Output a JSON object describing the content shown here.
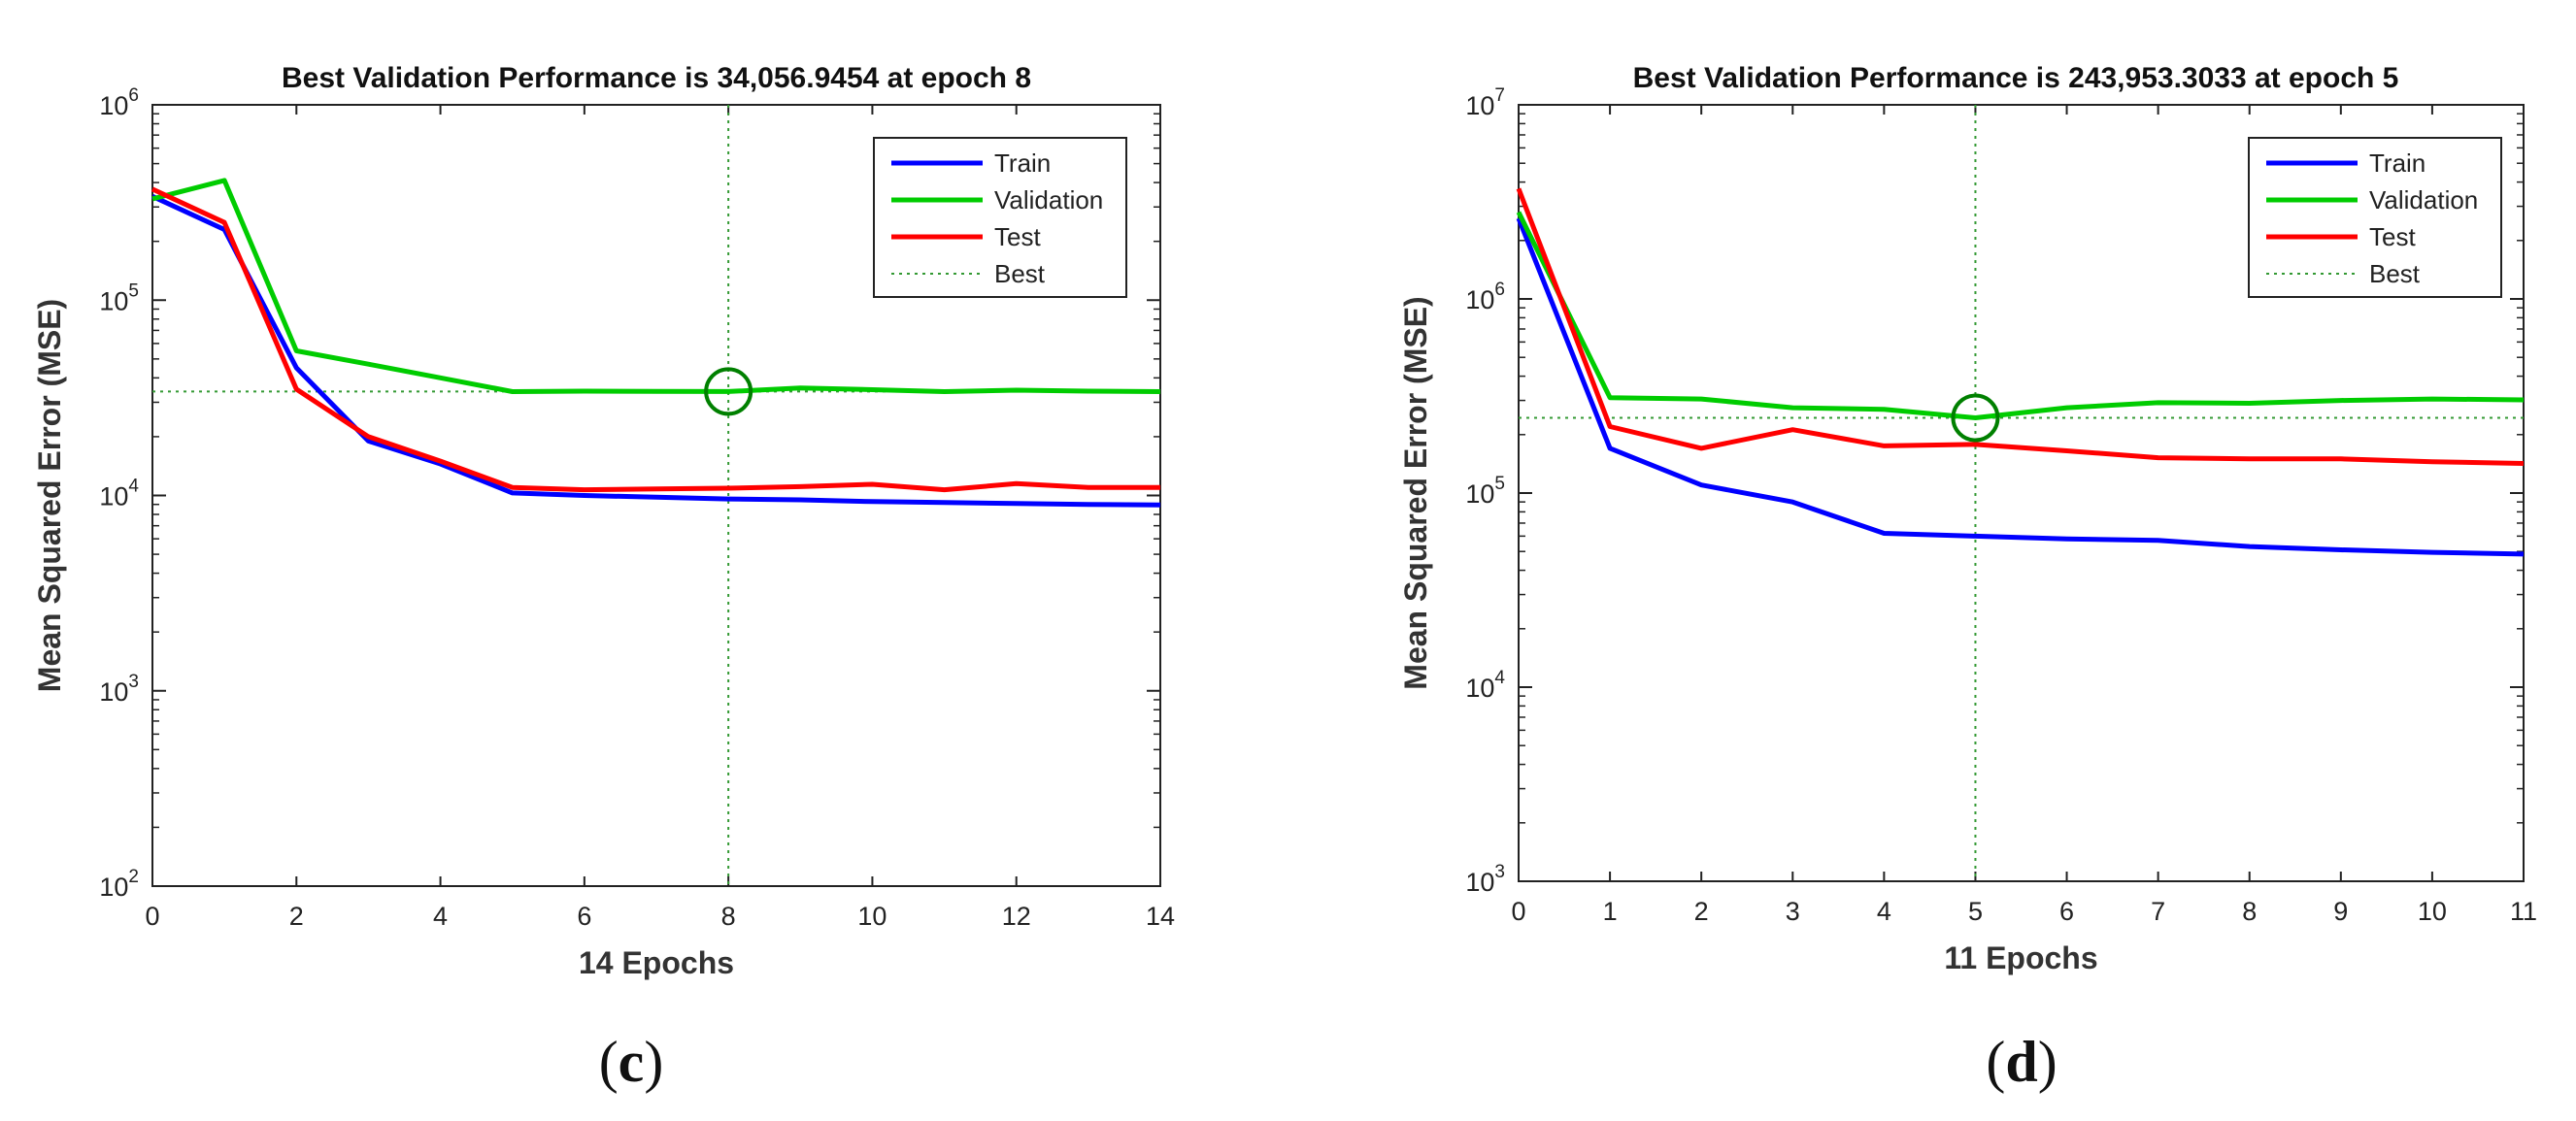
{
  "chart_data": [
    {
      "type": "line",
      "title": "Best Validation Performance is 34,056.9454 at epoch 8",
      "xlabel": "14 Epochs",
      "ylabel": "Mean Squared Error  (MSE)",
      "yscale": "log",
      "xlim": [
        0,
        14
      ],
      "ylim": [
        100,
        1000000
      ],
      "xticks": [
        0,
        2,
        4,
        6,
        8,
        10,
        12,
        14
      ],
      "yticks": [
        100,
        1000,
        10000,
        100000,
        1000000
      ],
      "ytick_exponents": [
        "2",
        "3",
        "4",
        "5",
        "6"
      ],
      "ytick_base": "10",
      "legend_position": "top-right",
      "best": {
        "epoch": 8,
        "value": 34056.9454
      },
      "series": [
        {
          "name": "Train",
          "color": "#0000ff",
          "style": "solid",
          "x": [
            0,
            1,
            2,
            3,
            4,
            5,
            6,
            7,
            8,
            9,
            10,
            11,
            12,
            13,
            14
          ],
          "values": [
            340000,
            230000,
            45000,
            19000,
            14500,
            10300,
            10000,
            9800,
            9600,
            9500,
            9300,
            9200,
            9100,
            9000,
            8950
          ]
        },
        {
          "name": "Validation",
          "color": "#00cc00",
          "style": "solid",
          "x": [
            0,
            1,
            2,
            3,
            4,
            5,
            6,
            7,
            8,
            9,
            10,
            11,
            12,
            13,
            14
          ],
          "values": [
            330000,
            410000,
            55000,
            47000,
            40000,
            34000,
            34200,
            34100,
            34056.9454,
            35500,
            34800,
            34000,
            34600,
            34200,
            34000
          ]
        },
        {
          "name": "Test",
          "color": "#ff0000",
          "style": "solid",
          "x": [
            0,
            1,
            2,
            3,
            4,
            5,
            6,
            7,
            8,
            9,
            10,
            11,
            12,
            13,
            14
          ],
          "values": [
            370000,
            250000,
            35000,
            20000,
            15000,
            11000,
            10700,
            10800,
            10900,
            11100,
            11400,
            10700,
            11500,
            11000,
            11000
          ]
        },
        {
          "name": "Best",
          "color": "#339933",
          "style": "dotted",
          "x": [],
          "values": []
        }
      ],
      "caption": "c"
    },
    {
      "type": "line",
      "title": "Best Validation Performance is 243,953.3033 at epoch 5",
      "xlabel": "11 Epochs",
      "ylabel": "Mean Squared Error  (MSE)",
      "yscale": "log",
      "xlim": [
        0,
        11
      ],
      "ylim": [
        1000,
        10000000
      ],
      "xticks": [
        0,
        1,
        2,
        3,
        4,
        5,
        6,
        7,
        8,
        9,
        10,
        11
      ],
      "yticks": [
        1000,
        10000,
        100000,
        1000000,
        10000000
      ],
      "ytick_exponents": [
        "3",
        "4",
        "5",
        "6",
        "7"
      ],
      "ytick_base": "10",
      "legend_position": "top-right",
      "best": {
        "epoch": 5,
        "value": 243953.3033
      },
      "series": [
        {
          "name": "Train",
          "color": "#0000ff",
          "style": "solid",
          "x": [
            0,
            1,
            2,
            3,
            4,
            5,
            6,
            7,
            8,
            9,
            10,
            11
          ],
          "values": [
            2600000,
            170000,
            110000,
            90000,
            62000,
            60000,
            58000,
            57000,
            53000,
            51000,
            49500,
            48500
          ]
        },
        {
          "name": "Validation",
          "color": "#00cc00",
          "style": "solid",
          "x": [
            0,
            1,
            2,
            3,
            4,
            5,
            6,
            7,
            8,
            9,
            10,
            11
          ],
          "values": [
            2800000,
            310000,
            305000,
            275000,
            270000,
            243953.3033,
            275000,
            292000,
            290000,
            300000,
            305000,
            302000
          ]
        },
        {
          "name": "Test",
          "color": "#ff0000",
          "style": "solid",
          "x": [
            0,
            1,
            2,
            3,
            4,
            5,
            6,
            7,
            8,
            9,
            10,
            11
          ],
          "values": [
            3700000,
            220000,
            170000,
            212000,
            175000,
            178000,
            165000,
            152000,
            150000,
            150000,
            145000,
            142000
          ]
        },
        {
          "name": "Best",
          "color": "#339933",
          "style": "dotted",
          "x": [],
          "values": []
        }
      ],
      "caption": "d"
    }
  ]
}
